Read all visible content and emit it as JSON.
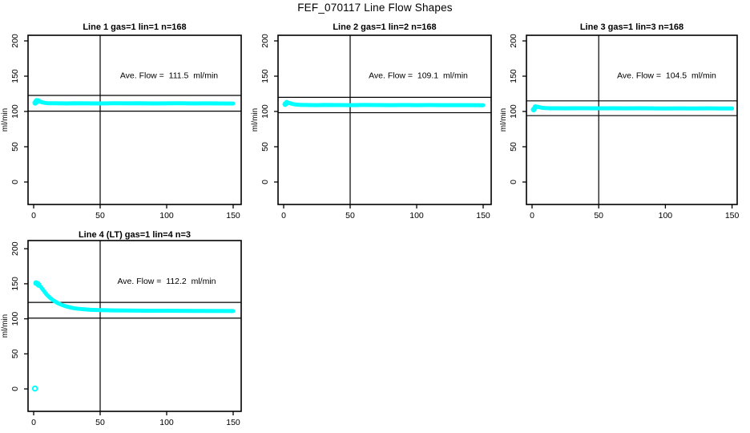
{
  "page": {
    "title": "FEF_070117  Line Flow Shapes",
    "background": "#ffffff",
    "axis_color": "#000000",
    "marker_color": "#00ffff",
    "unit": "ml/min"
  },
  "chart_data": [
    {
      "type": "scatter",
      "title": "Line 1 gas=1 lin=1 n=168",
      "annotation": "Ave. Flow =  111.5  ml/min",
      "avg_flow": 111.5,
      "xlabel": "",
      "ylabel": "ml/min",
      "xlim": [
        0,
        155
      ],
      "ylim": [
        0,
        210
      ],
      "xticks": [
        0,
        50,
        100,
        150
      ],
      "yticks": [
        0,
        50,
        100,
        150,
        200
      ],
      "vline_x": 50,
      "hlines": [
        122.7,
        100.4
      ],
      "series": [
        {
          "name": "flow",
          "x": [
            1.5,
            2,
            3,
            4,
            5,
            6,
            8,
            10,
            13,
            16,
            20,
            25,
            30,
            40,
            50,
            60,
            70,
            80,
            90,
            100,
            110,
            120,
            130,
            140,
            150
          ],
          "y": [
            112.0,
            113.6,
            114.6,
            114.4,
            113.9,
            113.2,
            112.3,
            111.8,
            111.6,
            111.7,
            111.5,
            111.4,
            111.6,
            111.5,
            111.4,
            111.6,
            111.5,
            111.7,
            111.4,
            111.5,
            111.6,
            111.4,
            111.5,
            111.4,
            111.2
          ]
        }
      ],
      "start_markers": [
        [
          1.2,
          112.2
        ],
        [
          2.2,
          115.0
        ],
        [
          3.5,
          114.8
        ]
      ],
      "outliers": []
    },
    {
      "type": "scatter",
      "title": "Line 2 gas=1 lin=2 n=168",
      "annotation": "Ave. Flow =  109.1  ml/min",
      "avg_flow": 109.1,
      "xlabel": "",
      "ylabel": "ml/min",
      "xlim": [
        0,
        155
      ],
      "ylim": [
        0,
        210
      ],
      "xticks": [
        0,
        50,
        100,
        150
      ],
      "yticks": [
        0,
        50,
        100,
        150,
        200
      ],
      "vline_x": 50,
      "hlines": [
        120.0,
        98.2
      ],
      "series": [
        {
          "name": "flow",
          "x": [
            1.5,
            2,
            3,
            4,
            5,
            6,
            8,
            10,
            13,
            16,
            20,
            25,
            30,
            40,
            50,
            60,
            70,
            80,
            90,
            100,
            110,
            120,
            130,
            140,
            150
          ],
          "y": [
            110.4,
            111.8,
            112.4,
            112.1,
            111.6,
            111.0,
            110.2,
            109.6,
            109.3,
            109.2,
            109.1,
            109.0,
            109.2,
            109.1,
            109.0,
            109.2,
            109.1,
            109.0,
            109.1,
            109.0,
            109.1,
            108.9,
            109.0,
            108.9,
            108.8
          ]
        }
      ],
      "start_markers": [
        [
          1.2,
          110.3
        ],
        [
          2.3,
          112.4
        ]
      ],
      "outliers": []
    },
    {
      "type": "scatter",
      "title": "Line 3 gas=1 lin=3 n=168",
      "annotation": "Ave. Flow =  104.5  ml/min",
      "avg_flow": 104.5,
      "xlabel": "",
      "ylabel": "ml/min",
      "xlim": [
        0,
        155
      ],
      "ylim": [
        0,
        210
      ],
      "xticks": [
        0,
        50,
        100,
        150
      ],
      "yticks": [
        0,
        50,
        100,
        150,
        200
      ],
      "vline_x": 50,
      "hlines": [
        115.0,
        94.1
      ],
      "series": [
        {
          "name": "flow",
          "x": [
            1.5,
            2,
            3,
            4,
            5,
            6,
            8,
            10,
            13,
            16,
            20,
            25,
            30,
            40,
            50,
            60,
            70,
            80,
            90,
            100,
            110,
            120,
            130,
            140,
            150
          ],
          "y": [
            103.0,
            105.2,
            106.4,
            106.7,
            106.3,
            105.8,
            105.1,
            104.8,
            104.6,
            104.6,
            104.5,
            104.4,
            104.5,
            104.5,
            104.4,
            104.5,
            104.4,
            104.5,
            104.4,
            104.3,
            104.4,
            104.3,
            104.4,
            104.3,
            104.2
          ]
        }
      ],
      "start_markers": [
        [
          1.2,
          102.6
        ],
        [
          2.5,
          106.2
        ]
      ],
      "outliers": []
    },
    {
      "type": "scatter",
      "title": "Line 4 (LT) gas=1 lin=4 n=3",
      "annotation": "Ave. Flow =  112.2  ml/min",
      "avg_flow": 112.2,
      "xlabel": "",
      "ylabel": "ml/min",
      "xlim": [
        0,
        155
      ],
      "ylim": [
        0,
        210
      ],
      "xticks": [
        0,
        50,
        100,
        150
      ],
      "yticks": [
        0,
        50,
        100,
        150,
        200
      ],
      "vline_x": 50,
      "hlines": [
        123.4,
        101.0
      ],
      "series": [
        {
          "name": "flow",
          "x": [
            2,
            3,
            4,
            5,
            6,
            7,
            8,
            9,
            10,
            12,
            14,
            16,
            18,
            20,
            23,
            26,
            30,
            34,
            38,
            43,
            50,
            60,
            70,
            85,
            100,
            120,
            150
          ],
          "y": [
            151,
            150,
            148.5,
            146.5,
            144,
            141.5,
            139,
            136.5,
            134.2,
            130.5,
            127.4,
            124.8,
            122.6,
            120.8,
            118.6,
            116.9,
            115.2,
            114.2,
            113.5,
            112.9,
            112.4,
            112.0,
            111.8,
            111.6,
            111.5,
            111.3,
            111.1
          ]
        }
      ],
      "start_markers": [
        [
          1.8,
          151.0
        ],
        [
          2.8,
          150.0
        ],
        [
          3.8,
          148.3
        ]
      ],
      "outliers": [
        [
          1,
          0.5
        ]
      ]
    }
  ]
}
